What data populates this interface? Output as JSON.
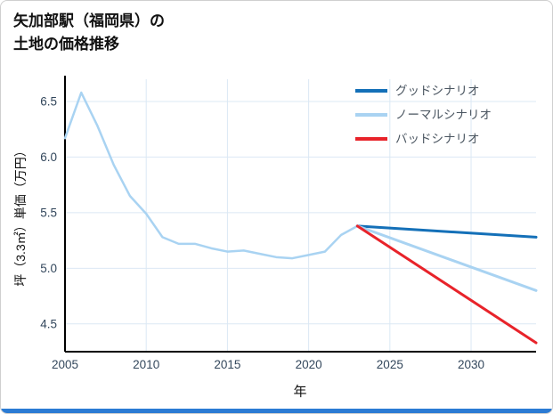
{
  "title": {
    "line1": "矢加部駅（福岡県）の",
    "line2": "土地の価格推移"
  },
  "footer": {
    "accent_color": "#2b7bd4"
  },
  "chart_data": {
    "type": "line",
    "title": "矢加部駅（福岡県）の土地の価格推移",
    "xlabel": "年",
    "ylabel": "坪（3.3㎡）単価（万円）",
    "xlim": [
      2005,
      2034
    ],
    "ylim": [
      4.25,
      6.7
    ],
    "grid": true,
    "legend_position": "top-right",
    "xticks": {
      "values": [
        2005,
        2010,
        2015,
        2020,
        2025,
        2030
      ],
      "labels": [
        "2005",
        "2010",
        "2015",
        "2020",
        "2025",
        "2030"
      ]
    },
    "yticks": {
      "values": [
        4.5,
        5.0,
        5.5,
        6.0,
        6.5
      ],
      "labels": [
        "4.5",
        "5.0",
        "5.5",
        "6.0",
        "6.5"
      ]
    },
    "colors": {
      "good": "#1470b8",
      "normal": "#a9d3f2",
      "bad": "#e8232a",
      "history": "#a9d3f2",
      "grid": "#dbe8f4",
      "axis": "#000000",
      "tick_text": "#33475c",
      "legend_text": "#4a5560"
    },
    "series": [
      {
        "name": "history",
        "color_key": "history",
        "width": 2.5,
        "in_legend": false,
        "x": [
          2005,
          2006,
          2007,
          2008,
          2009,
          2010,
          2011,
          2012,
          2013,
          2014,
          2015,
          2016,
          2017,
          2018,
          2019,
          2020,
          2021,
          2022,
          2023
        ],
        "values": [
          6.17,
          6.58,
          6.28,
          5.93,
          5.65,
          5.49,
          5.28,
          5.22,
          5.22,
          5.18,
          5.15,
          5.16,
          5.13,
          5.1,
          5.09,
          5.12,
          5.15,
          5.3,
          5.38
        ]
      },
      {
        "name": "グッドシナリオ",
        "color_key": "good",
        "width": 3,
        "in_legend": true,
        "x": [
          2023,
          2034
        ],
        "values": [
          5.38,
          5.28
        ]
      },
      {
        "name": "ノーマルシナリオ",
        "color_key": "normal",
        "width": 3,
        "in_legend": true,
        "x": [
          2023,
          2034
        ],
        "values": [
          5.38,
          4.8
        ]
      },
      {
        "name": "バッドシナリオ",
        "color_key": "bad",
        "width": 3,
        "in_legend": true,
        "x": [
          2023,
          2034
        ],
        "values": [
          5.38,
          4.33
        ]
      }
    ],
    "legend": [
      {
        "label": "グッドシナリオ",
        "color_key": "good"
      },
      {
        "label": "ノーマルシナリオ",
        "color_key": "normal"
      },
      {
        "label": "バッドシナリオ",
        "color_key": "bad"
      }
    ]
  }
}
